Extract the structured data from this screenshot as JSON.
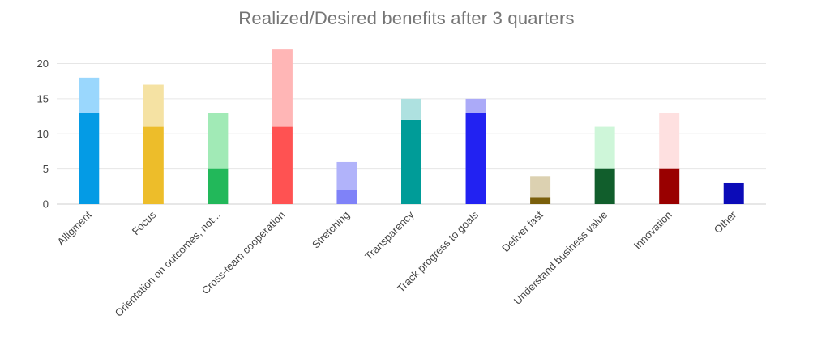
{
  "chart_data": {
    "type": "bar",
    "stacked": true,
    "title": "Realized/Desired benefits after 3 quarters",
    "xlabel": "",
    "ylabel": "",
    "ylim": [
      0,
      22
    ],
    "yticks": [
      0,
      5,
      10,
      15,
      20
    ],
    "grid": true,
    "legend": "none",
    "categories": [
      "Alligment",
      "Focus",
      "Orientation on outcomes, not...",
      "Cross-team cooperation",
      "Stretching",
      "Transparency",
      "Track progress to goals",
      "Deliver fast",
      "Understand business value",
      "Innovation",
      "Other"
    ],
    "series": [
      {
        "values": [
          13,
          11,
          5,
          11,
          2,
          12,
          13,
          1,
          5,
          5,
          3
        ],
        "colors": [
          "#049be5",
          "#edbd2a",
          "#22b85a",
          "#ff5252",
          "#7f82f8",
          "#009c98",
          "#2222f2",
          "#7a5f0b",
          "#115e2c",
          "#990000",
          "#0b0bb8"
        ]
      },
      {
        "values": [
          5,
          6,
          8,
          11,
          4,
          3,
          2,
          3,
          6,
          8,
          0
        ],
        "colors": [
          "#9ad7fd",
          "#f5e2a3",
          "#a1eab6",
          "#ffb6b6",
          "#b1b3fa",
          "#aee1e0",
          "#abaaf8",
          "#dcd1b1",
          "#cef6d9",
          "#fee0e0",
          "#b6b6ee"
        ]
      }
    ]
  }
}
